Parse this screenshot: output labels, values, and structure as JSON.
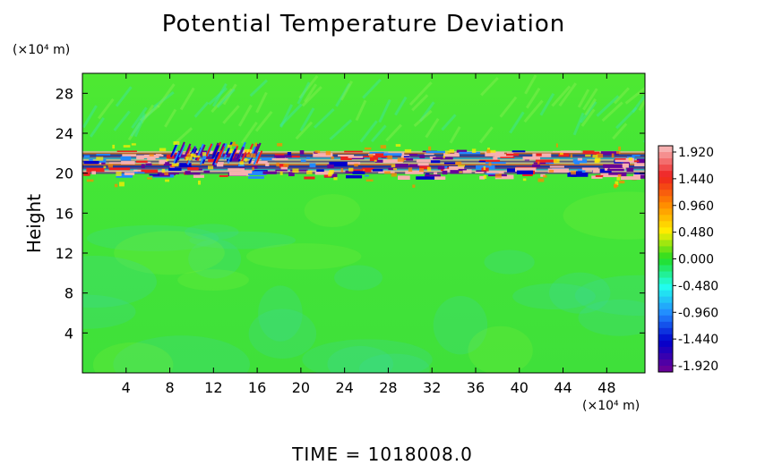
{
  "chart_data": {
    "type": "heatmap",
    "title": "Potential Temperature Deviation",
    "ylabel": "Height",
    "xlabel": "",
    "y_unit": "(×10⁴ m)",
    "x_unit": "(×10⁴ m)",
    "xlim": [
      0,
      51.5
    ],
    "ylim": [
      0,
      30
    ],
    "x_ticks": [
      4,
      8,
      12,
      16,
      20,
      24,
      28,
      32,
      36,
      40,
      44,
      48
    ],
    "y_ticks": [
      4,
      8,
      12,
      16,
      20,
      24,
      28
    ],
    "colorbar": {
      "range": [
        -1.92,
        1.92
      ],
      "tick_labels": [
        "1.920",
        "1.440",
        "0.960",
        "0.480",
        "0.000",
        "-0.480",
        "-0.960",
        "-1.440",
        "-1.920"
      ],
      "colors": [
        "#f7b0b0",
        "#ee2020",
        "#ff8800",
        "#ffee00",
        "#22dd22",
        "#22ffee",
        "#2288ff",
        "#0000cc",
        "#660099"
      ]
    },
    "background_value": 0.0,
    "perturbation_layer": {
      "y_center": 21.0,
      "y_half_width": 2.5,
      "x_range": [
        0,
        51.5
      ]
    }
  },
  "footer": {
    "time_text": "TIME  =  1018008.0"
  }
}
